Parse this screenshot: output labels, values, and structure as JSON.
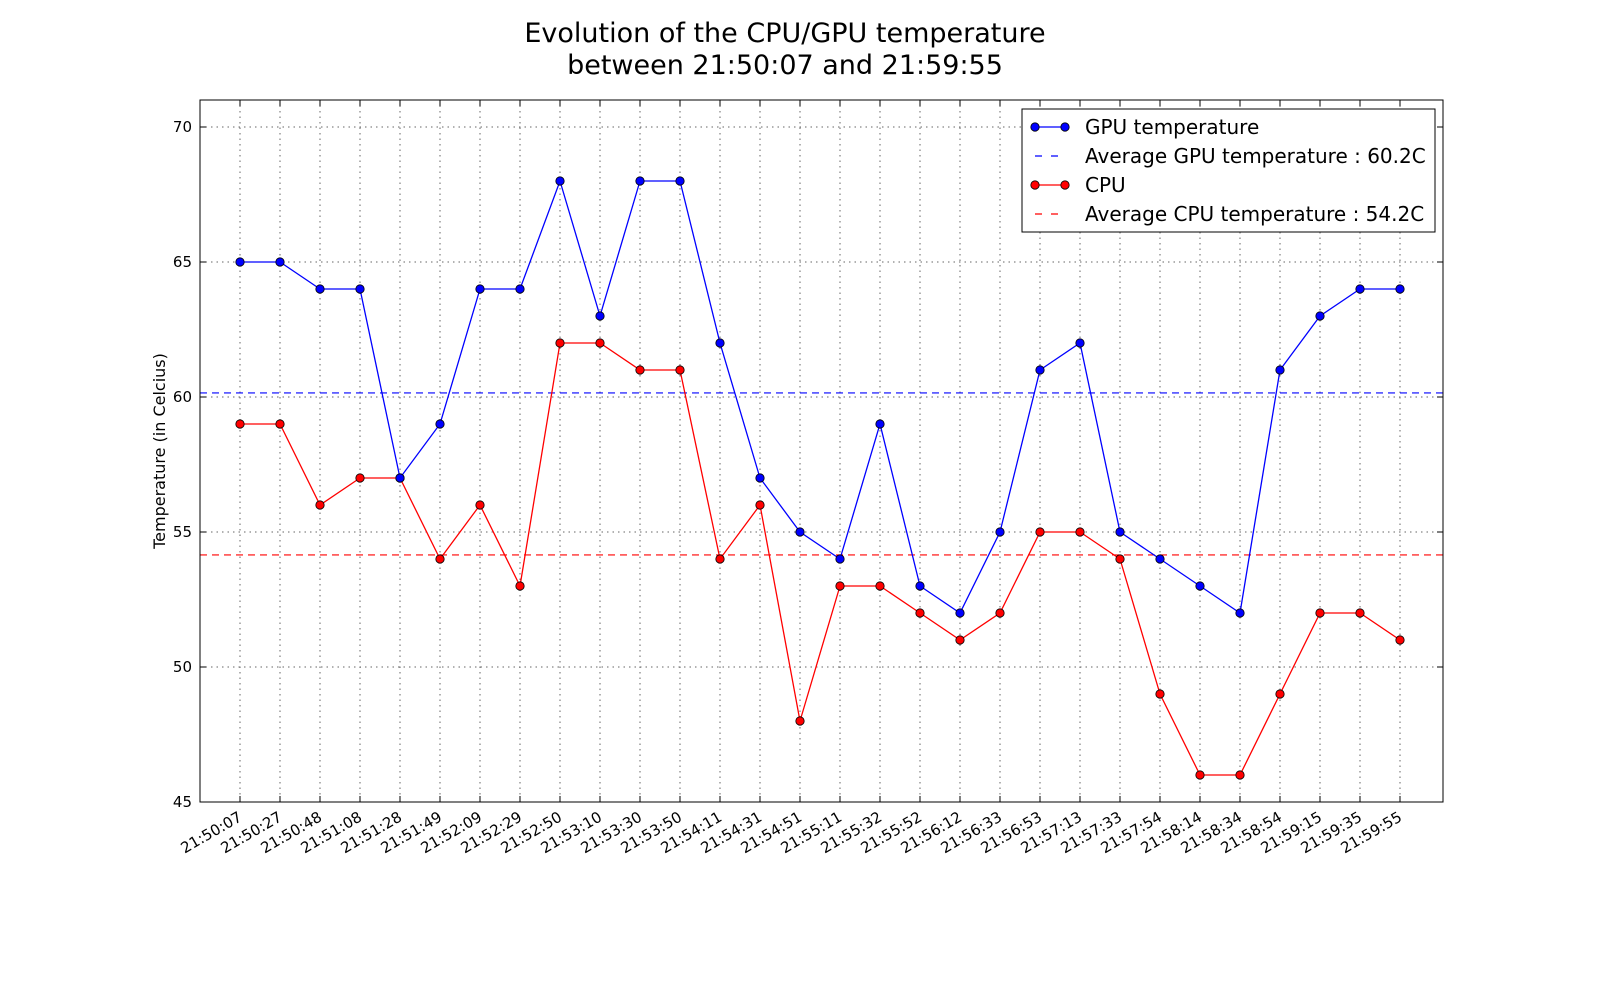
{
  "chart_data": {
    "type": "line",
    "title": [
      "Evolution of the CPU/GPU temperature",
      "between 21:50:07 and 21:59:55"
    ],
    "xlabel": "",
    "ylabel": "Temperature (in Celcius)",
    "ylim": [
      45,
      71
    ],
    "yticks": [
      45,
      50,
      55,
      60,
      65,
      70
    ],
    "grid": true,
    "legend_position": "top-right",
    "categories": [
      "21:50:07",
      "21:50:27",
      "21:50:48",
      "21:51:08",
      "21:51:28",
      "21:51:49",
      "21:52:09",
      "21:52:29",
      "21:52:50",
      "21:53:10",
      "21:53:30",
      "21:53:50",
      "21:54:11",
      "21:54:31",
      "21:54:51",
      "21:55:11",
      "21:55:32",
      "21:55:52",
      "21:56:12",
      "21:56:33",
      "21:56:53",
      "21:57:13",
      "21:57:33",
      "21:57:54",
      "21:58:14",
      "21:58:34",
      "21:58:54",
      "21:59:15",
      "21:59:35",
      "21:59:55"
    ],
    "series": [
      {
        "name": "GPU temperature",
        "color": "#0000ff",
        "marker": "circle",
        "values": [
          65,
          65,
          64,
          64,
          57,
          59,
          64,
          64,
          68,
          63,
          68,
          68,
          62,
          57,
          55,
          54,
          59,
          53,
          52,
          55,
          61,
          62,
          55,
          54,
          53,
          52,
          61,
          63,
          64,
          64
        ]
      },
      {
        "name": "CPU",
        "color": "#ff0000",
        "marker": "circle",
        "values": [
          59,
          59,
          56,
          57,
          57,
          54,
          56,
          53,
          62,
          62,
          61,
          61,
          54,
          56,
          48,
          53,
          53,
          52,
          51,
          52,
          55,
          55,
          54,
          49,
          46,
          46,
          49,
          52,
          52,
          51
        ]
      }
    ],
    "reference_lines": [
      {
        "name": "Average GPU temperature : 60.2C",
        "value": 60.15,
        "color": "#0000ff",
        "style": "dashed"
      },
      {
        "name": "Average CPU temperature : 54.2C",
        "value": 54.15,
        "color": "#ff0000",
        "style": "dashed"
      }
    ],
    "legend": [
      "GPU temperature",
      "Average GPU temperature : 60.2C",
      "CPU",
      "Average CPU temperature : 54.2C"
    ]
  }
}
